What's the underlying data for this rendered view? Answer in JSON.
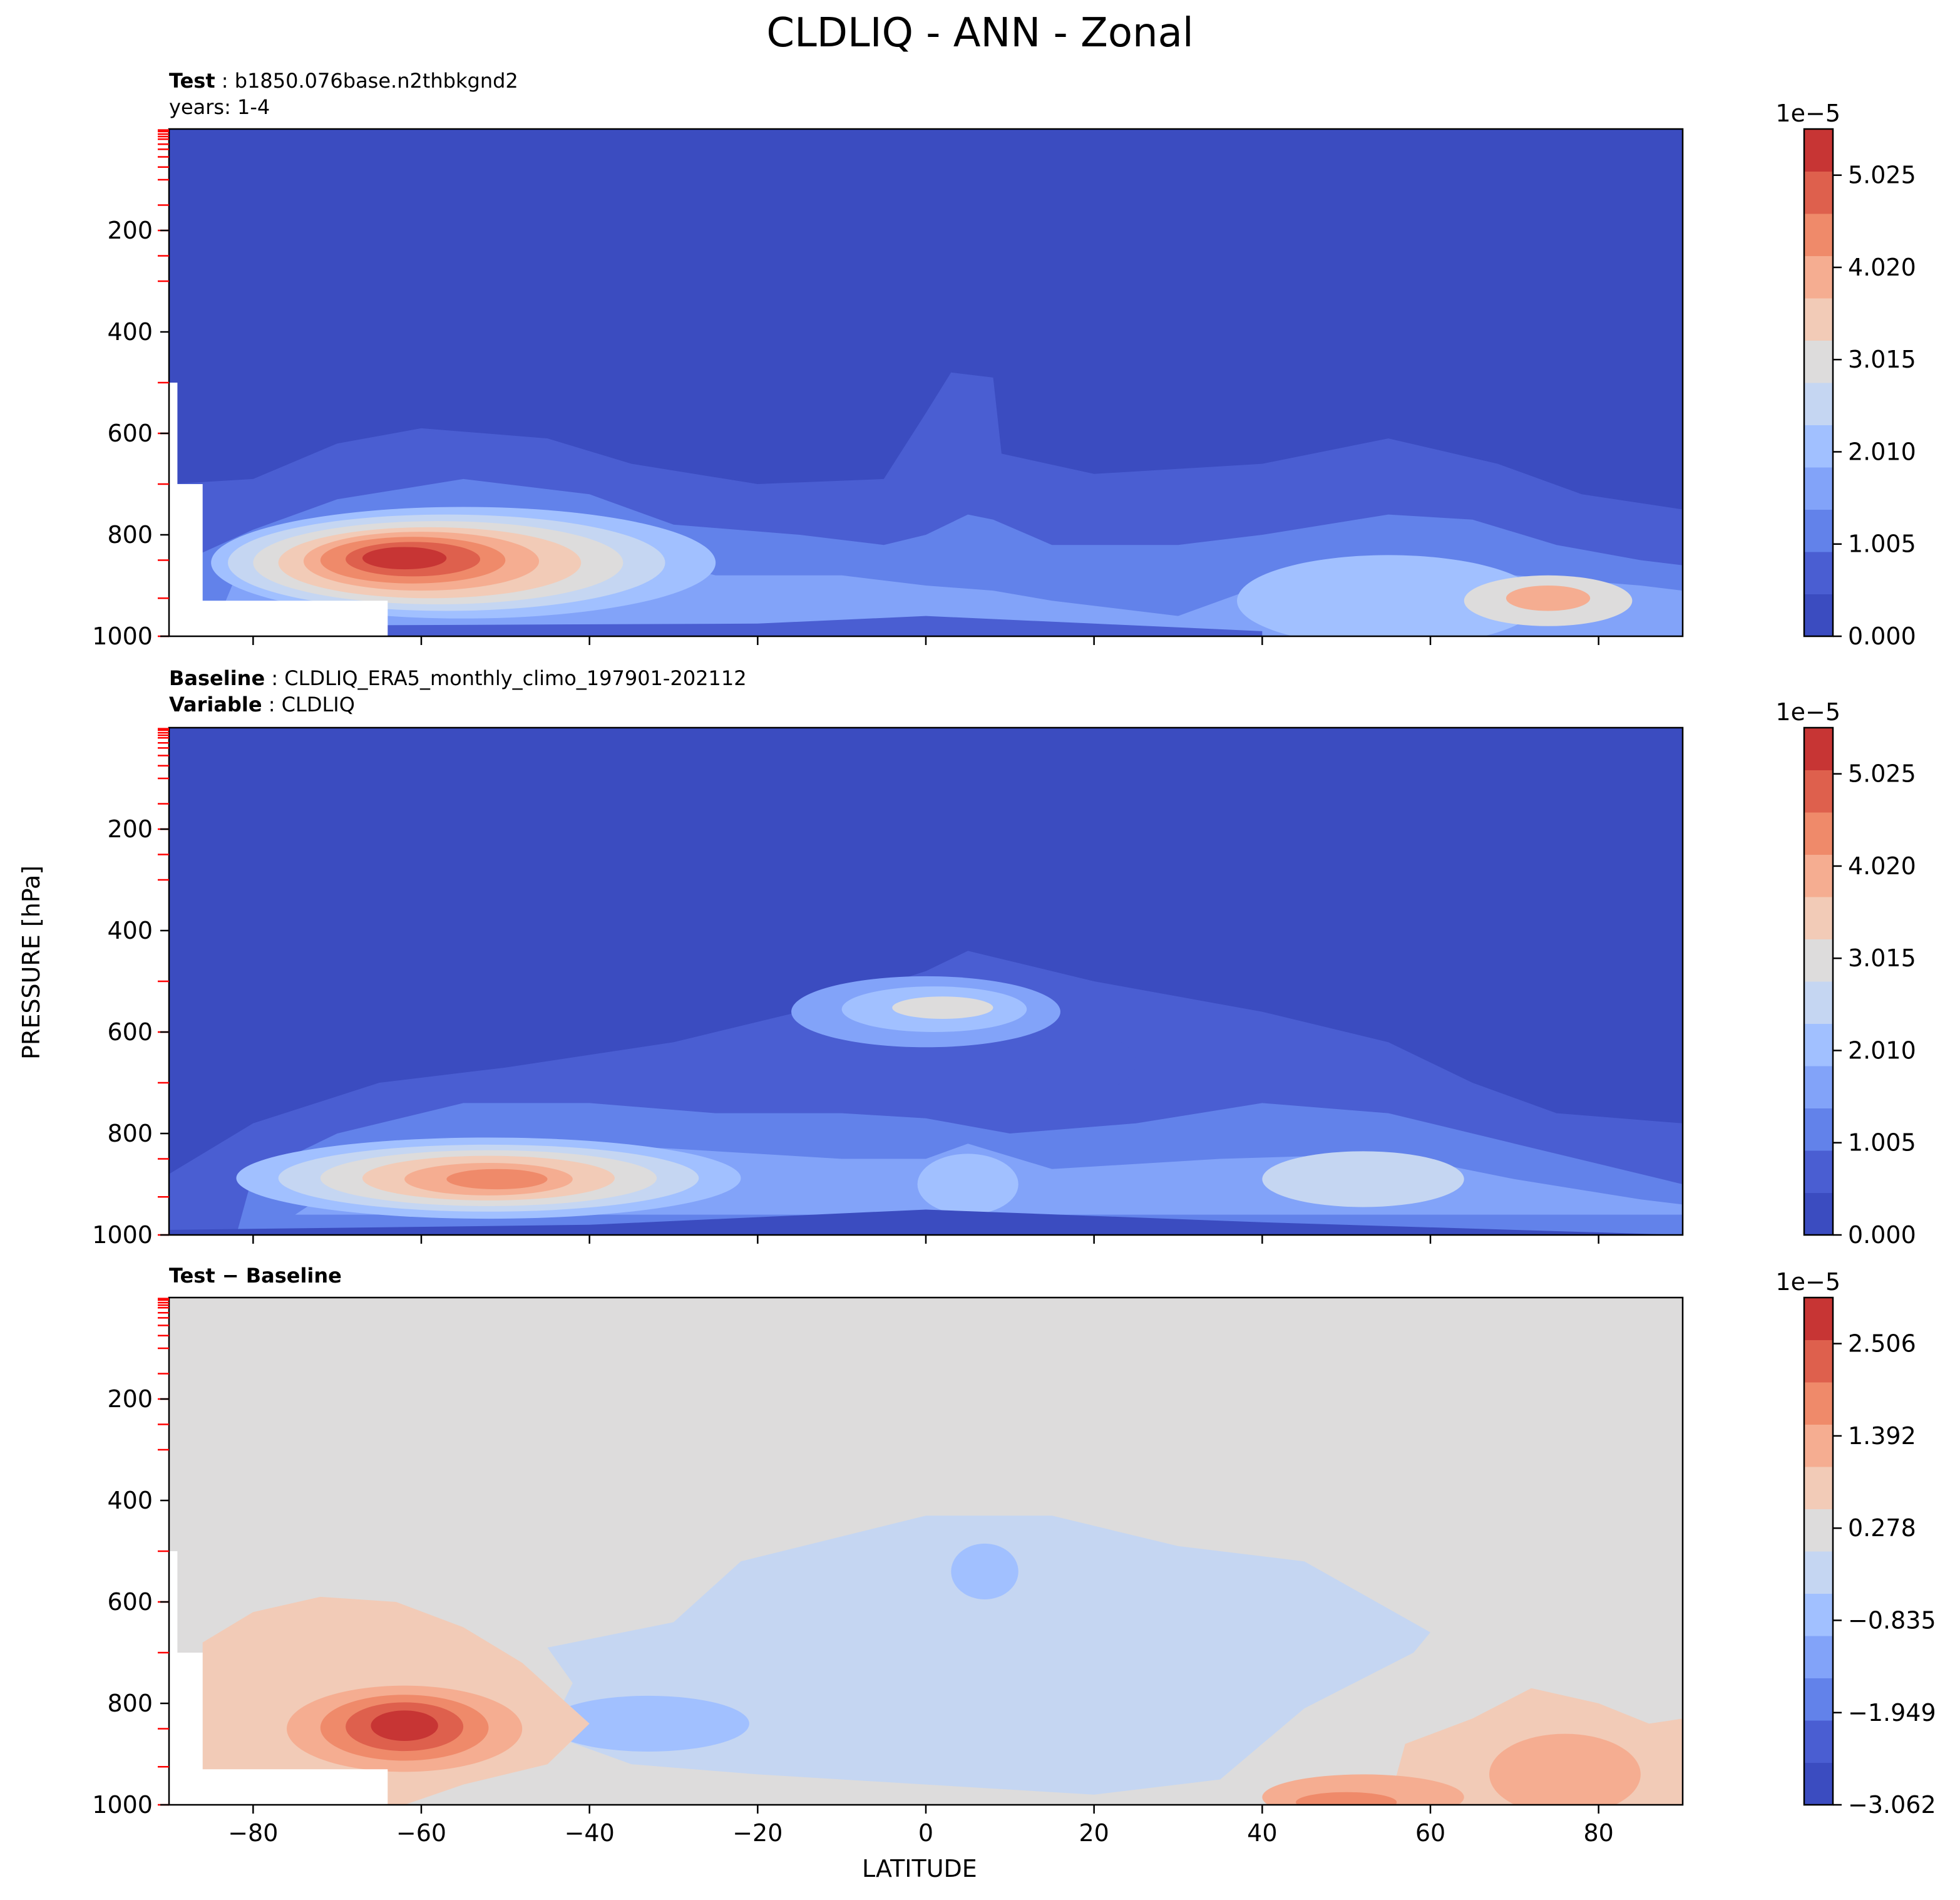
{
  "figure_title": "CLDLIQ - ANN - Zonal",
  "panels": [
    {
      "id": "test",
      "lines": [
        {
          "key": "Test",
          "value": "b1850.076base.n2thbkgnd2"
        },
        {
          "key": "",
          "value": "years: 1-4"
        }
      ]
    },
    {
      "id": "baseline",
      "lines": [
        {
          "key": "Baseline",
          "value": "CLDLIQ_ERA5_monthly_climo_197901-202112"
        },
        {
          "key": "Variable",
          "value": "CLDLIQ"
        }
      ]
    },
    {
      "id": "diff",
      "lines": [
        {
          "key": "Test − Baseline",
          "value": ""
        }
      ]
    }
  ],
  "y_axis_label": "PRESSURE [hPa]",
  "x_axis_label": "LATITUDE",
  "chart_data": [
    {
      "type": "heatmap",
      "panel": "test",
      "xlabel": "LATITUDE",
      "ylabel": "PRESSURE [hPa]",
      "xlim": [
        -90,
        90
      ],
      "ylim": [
        1000,
        0
      ],
      "inverted_y": true,
      "yticks": [
        200,
        400,
        600,
        800,
        1000
      ],
      "colorbar": {
        "exponent": "1e−5",
        "ticks": [
          "0.000",
          "1.005",
          "2.010",
          "3.015",
          "4.020",
          "5.025"
        ],
        "range": [
          0,
          5.528
        ],
        "levels": 11,
        "cmap": "coolwarm"
      },
      "features": [
        {
          "desc": "southern ocean low-cloud maximum",
          "lat": -62,
          "p": 850,
          "value": 5.3
        },
        {
          "desc": "arctic low-level maximum",
          "lat": 74,
          "p": 920,
          "value": 3.4
        },
        {
          "desc": "tropical deep column",
          "lat": 5,
          "p": 500,
          "value": 0.6
        }
      ]
    },
    {
      "type": "heatmap",
      "panel": "baseline",
      "xlim": [
        -90,
        90
      ],
      "ylim": [
        1000,
        0
      ],
      "inverted_y": true,
      "yticks": [
        200,
        400,
        600,
        800,
        1000
      ],
      "colorbar": {
        "exponent": "1e−5",
        "ticks": [
          "0.000",
          "1.005",
          "2.010",
          "3.015",
          "4.020",
          "5.025"
        ],
        "range": [
          0,
          5.528
        ],
        "levels": 11,
        "cmap": "coolwarm"
      },
      "features": [
        {
          "desc": "southern ocean low-cloud maximum",
          "lat": -52,
          "p": 890,
          "value": 4.3
        },
        {
          "desc": "tropical mid-level maximum",
          "lat": 2,
          "p": 550,
          "value": 2.8
        },
        {
          "desc": "northern mid-latitude maximum",
          "lat": 50,
          "p": 880,
          "value": 2.6
        }
      ]
    },
    {
      "type": "heatmap",
      "panel": "diff",
      "xlim": [
        -90,
        90
      ],
      "ylim": [
        1000,
        0
      ],
      "inverted_y": true,
      "xticks": [
        -80,
        -60,
        -40,
        -20,
        0,
        20,
        40,
        60,
        80
      ],
      "yticks": [
        200,
        400,
        600,
        800,
        1000
      ],
      "colorbar": {
        "exponent": "1e−5",
        "ticks": [
          "−3.062",
          "−1.949",
          "−0.835",
          "0.278",
          "1.392",
          "2.506"
        ],
        "range": [
          -3.062,
          3.062
        ],
        "levels": 11,
        "cmap": "coolwarm"
      },
      "features": [
        {
          "desc": "positive difference maximum",
          "lat": -62,
          "p": 850,
          "value": 3.0
        },
        {
          "desc": "negative difference minimum",
          "lat": -28,
          "p": 820,
          "value": -1.5
        },
        {
          "desc": "arctic positive difference",
          "lat": 75,
          "p": 920,
          "value": 1.3
        }
      ]
    }
  ],
  "colors": {
    "ramp": [
      "#3b4cc0",
      "#4a5ed2",
      "#6282ea",
      "#82a3f9",
      "#a1c0ff",
      "#c5d6f2",
      "#dddcdc",
      "#f2cbb7",
      "#f5ad91",
      "#ef8a6a",
      "#de604d",
      "#c73534"
    ],
    "tick_marker": "#ff0000"
  }
}
